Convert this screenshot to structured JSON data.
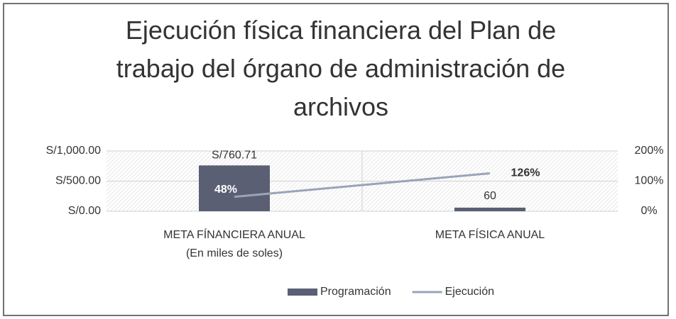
{
  "chart_data": {
    "type": "bar-line",
    "title": "Ejecución física financiera del Plan de trabajo del órgano de administración de archivos",
    "categories": [
      [
        "META FÍNANCIERA ANUAL",
        "(En miles de soles)"
      ],
      [
        "META FÍSICA ANUAL"
      ]
    ],
    "series": [
      {
        "name": "Programación",
        "type": "bar",
        "color": "#5a5f73",
        "values": [
          760.71,
          60
        ],
        "value_labels": [
          "S/760.71",
          "60"
        ]
      },
      {
        "name": "Ejecución",
        "type": "line",
        "axis": "y2",
        "color": "#9aa3b8",
        "values": [
          48,
          126
        ],
        "value_labels": [
          "48%",
          "126%"
        ]
      }
    ],
    "ylim": [
      0,
      1000
    ],
    "yticks": [
      {
        "value": 0,
        "label": "S/0.00"
      },
      {
        "value": 500,
        "label": "S/500.00"
      },
      {
        "value": 1000,
        "label": "S/1,000.00"
      }
    ],
    "y2lim": [
      0,
      200
    ],
    "y2ticks": [
      {
        "value": 0,
        "label": "0%"
      },
      {
        "value": 100,
        "label": "100%"
      },
      {
        "value": 200,
        "label": "200%"
      }
    ],
    "grid": true,
    "legend": "bottom"
  }
}
